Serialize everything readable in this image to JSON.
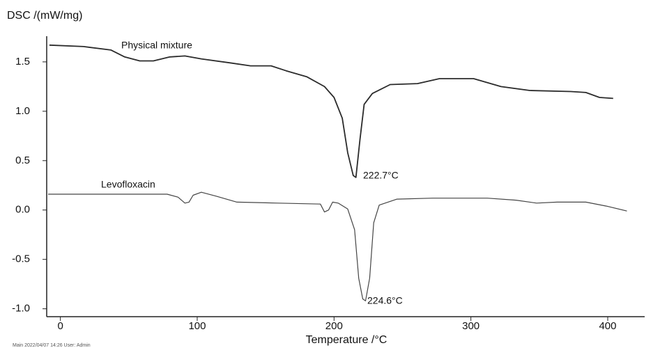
{
  "chart_data": {
    "type": "line",
    "y_label": "DSC /(mW/mg)",
    "x_label": "Temperature /°C",
    "footer": "Main 2022/04/07 14:26 User: Admin",
    "xlim": [
      -10,
      427
    ],
    "ylim": [
      -1.08,
      1.76
    ],
    "xticks": [
      0,
      100,
      200,
      300,
      400
    ],
    "yticks": [
      {
        "value": 1.5,
        "label": "1.5"
      },
      {
        "value": 1.0,
        "label": "1.0"
      },
      {
        "value": 0.5,
        "label": "0.5"
      },
      {
        "value": 0.0,
        "label": "0.0"
      },
      {
        "value": -0.5,
        "label": "-0.5"
      },
      {
        "value": -1.0,
        "label": "-1.0"
      }
    ],
    "series": [
      {
        "name": "Physical mixture",
        "color": "#2b2b2b",
        "x": [
          -8,
          17,
          37,
          47,
          58,
          68,
          80,
          91,
          103,
          124,
          139,
          154,
          165,
          180,
          193,
          200,
          206,
          210,
          214,
          216,
          219,
          222,
          228,
          241,
          261,
          277,
          302,
          322,
          343,
          373,
          384,
          394,
          404
        ],
        "values": [
          1.67,
          1.655,
          1.62,
          1.55,
          1.51,
          1.51,
          1.55,
          1.56,
          1.53,
          1.49,
          1.46,
          1.46,
          1.41,
          1.35,
          1.25,
          1.14,
          0.93,
          0.58,
          0.35,
          0.33,
          0.72,
          1.07,
          1.18,
          1.27,
          1.28,
          1.33,
          1.33,
          1.25,
          1.21,
          1.2,
          1.19,
          1.14,
          1.13
        ]
      },
      {
        "name": "Levofloxacin",
        "color": "#444444",
        "x": [
          -9,
          78,
          86,
          91,
          94,
          97,
          103,
          114,
          129,
          159,
          190,
          193,
          196,
          199,
          203,
          210,
          215,
          218,
          221,
          223,
          226,
          229,
          233,
          246,
          272,
          312,
          333,
          348,
          363,
          384,
          399,
          414
        ],
        "values": [
          0.16,
          0.16,
          0.13,
          0.07,
          0.08,
          0.15,
          0.18,
          0.14,
          0.08,
          0.07,
          0.06,
          -0.02,
          0.0,
          0.08,
          0.07,
          0.01,
          -0.2,
          -0.69,
          -0.9,
          -0.92,
          -0.69,
          -0.13,
          0.05,
          0.11,
          0.12,
          0.12,
          0.1,
          0.07,
          0.08,
          0.08,
          0.04,
          -0.01
        ]
      }
    ],
    "annotations": [
      "222.7°C",
      "224.6°C"
    ]
  }
}
